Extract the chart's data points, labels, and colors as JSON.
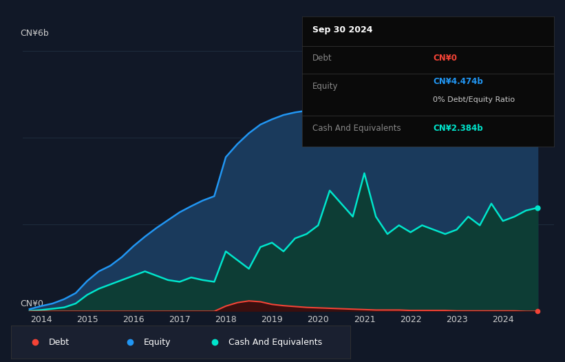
{
  "bg_color": "#111827",
  "plot_bg_color": "#111827",
  "grid_color": "#1f2d3d",
  "ylabel_top": "CN¥6b",
  "ylabel_bottom": "CN¥0",
  "equity_color": "#2196f3",
  "cash_color": "#00e5cc",
  "debt_color": "#f44336",
  "equity_fill": "#1a3a5c",
  "cash_fill": "#0d3d35",
  "legend_items": [
    "Debt",
    "Equity",
    "Cash And Equivalents"
  ],
  "legend_colors": [
    "#f44336",
    "#2196f3",
    "#00e5cc"
  ],
  "tooltip_title": "Sep 30 2024",
  "tooltip_debt_label": "Debt",
  "tooltip_debt_value": "CN¥0",
  "tooltip_debt_color": "#f44336",
  "tooltip_equity_label": "Equity",
  "tooltip_equity_value": "CN¥4.474b",
  "tooltip_equity_color": "#2196f3",
  "tooltip_ratio_text": "0% Debt/Equity Ratio",
  "tooltip_cash_label": "Cash And Equivalents",
  "tooltip_cash_value": "CN¥2.384b",
  "tooltip_cash_color": "#00e5cc",
  "ylim": [
    0,
    6.5
  ],
  "xlim_start": 2013.6,
  "xlim_end": 2025.1,
  "xticks": [
    2014,
    2015,
    2016,
    2017,
    2018,
    2019,
    2020,
    2021,
    2022,
    2023,
    2024
  ],
  "years": [
    2013.75,
    2014.0,
    2014.25,
    2014.5,
    2014.75,
    2015.0,
    2015.25,
    2015.5,
    2015.75,
    2016.0,
    2016.25,
    2016.5,
    2016.75,
    2017.0,
    2017.25,
    2017.5,
    2017.75,
    2018.0,
    2018.25,
    2018.5,
    2018.75,
    2019.0,
    2019.25,
    2019.5,
    2019.75,
    2020.0,
    2020.25,
    2020.5,
    2020.75,
    2021.0,
    2021.25,
    2021.5,
    2021.75,
    2022.0,
    2022.25,
    2022.5,
    2022.75,
    2023.0,
    2023.25,
    2023.5,
    2023.75,
    2024.0,
    2024.25,
    2024.5,
    2024.75
  ],
  "equity": [
    0.05,
    0.12,
    0.18,
    0.28,
    0.42,
    0.7,
    0.92,
    1.05,
    1.25,
    1.5,
    1.72,
    1.92,
    2.1,
    2.28,
    2.42,
    2.55,
    2.65,
    3.55,
    3.85,
    4.1,
    4.3,
    4.42,
    4.52,
    4.58,
    4.62,
    4.72,
    5.1,
    5.3,
    5.4,
    5.85,
    5.5,
    5.05,
    4.82,
    4.62,
    4.75,
    4.68,
    4.55,
    4.32,
    4.38,
    4.42,
    4.52,
    4.57,
    4.62,
    4.66,
    4.474
  ],
  "cash": [
    0.01,
    0.03,
    0.06,
    0.09,
    0.18,
    0.38,
    0.52,
    0.62,
    0.72,
    0.82,
    0.92,
    0.82,
    0.72,
    0.68,
    0.78,
    0.72,
    0.68,
    1.38,
    1.18,
    0.98,
    1.48,
    1.58,
    1.38,
    1.68,
    1.78,
    1.98,
    2.78,
    2.48,
    2.18,
    3.18,
    2.18,
    1.78,
    1.98,
    1.82,
    1.98,
    1.88,
    1.78,
    1.88,
    2.18,
    1.98,
    2.48,
    2.08,
    2.18,
    2.32,
    2.384
  ],
  "debt": [
    0.0,
    0.0,
    0.0,
    0.0,
    0.0,
    0.0,
    0.0,
    0.0,
    0.0,
    0.0,
    0.0,
    0.0,
    0.0,
    0.0,
    0.0,
    0.0,
    0.0,
    0.12,
    0.2,
    0.24,
    0.22,
    0.16,
    0.13,
    0.11,
    0.09,
    0.08,
    0.07,
    0.06,
    0.05,
    0.04,
    0.03,
    0.03,
    0.03,
    0.02,
    0.02,
    0.02,
    0.02,
    0.01,
    0.01,
    0.01,
    0.01,
    0.01,
    0.01,
    0.0,
    0.0
  ]
}
